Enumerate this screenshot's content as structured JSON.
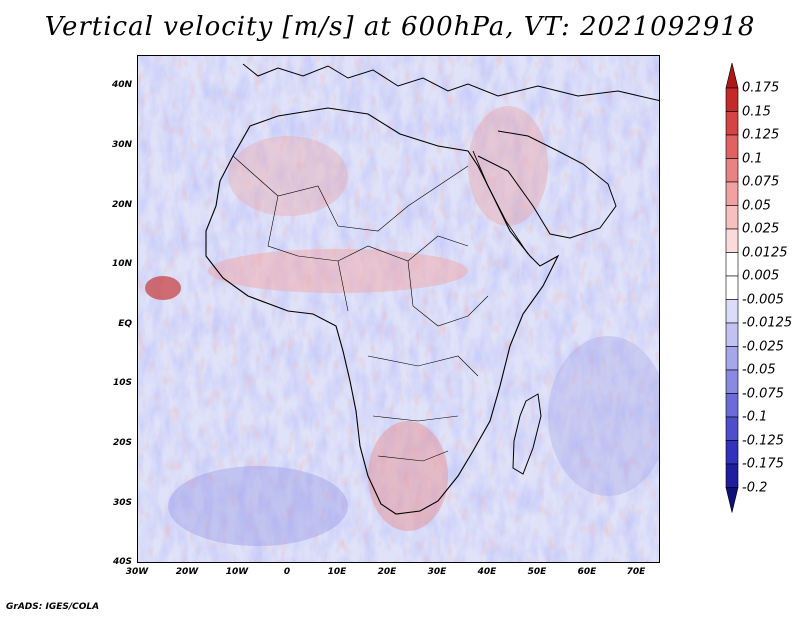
{
  "title": "Vertical velocity [m/s] at 600hPa, VT: 2021092918",
  "footer": "GrADS: IGES/COLA",
  "map": {
    "lat_ticks": [
      "40N",
      "30N",
      "20N",
      "10N",
      "EQ",
      "10S",
      "20S",
      "30S",
      "40S"
    ],
    "lon_ticks": [
      "30W",
      "20W",
      "10W",
      "0",
      "10E",
      "20E",
      "30E",
      "40E",
      "50E",
      "60E",
      "70E"
    ],
    "lon_range": [
      -30,
      75
    ],
    "lat_range": [
      -40,
      45
    ]
  },
  "colorbar": {
    "labels": [
      "0.175",
      "0.15",
      "0.125",
      "0.1",
      "0.075",
      "0.05",
      "0.025",
      "0.0125",
      "0.005",
      "-0.005",
      "-0.0125",
      "-0.025",
      "-0.05",
      "-0.075",
      "-0.1",
      "-0.125",
      "-0.175",
      "-0.2"
    ],
    "colors": [
      "#b01818",
      "#c42a2a",
      "#d44444",
      "#e06262",
      "#e98282",
      "#f0a2a2",
      "#f6c0c0",
      "#fadada",
      "#ffffff",
      "#ffffff",
      "#dcdcf8",
      "#c2c2f2",
      "#a6a6ec",
      "#8a8ae2",
      "#6c6cd8",
      "#4e4ecc",
      "#3232bc",
      "#1e1e9e",
      "#10107a"
    ]
  },
  "colors": {
    "ocean_base": "#d8dcf6",
    "land_outline": "#000000"
  }
}
